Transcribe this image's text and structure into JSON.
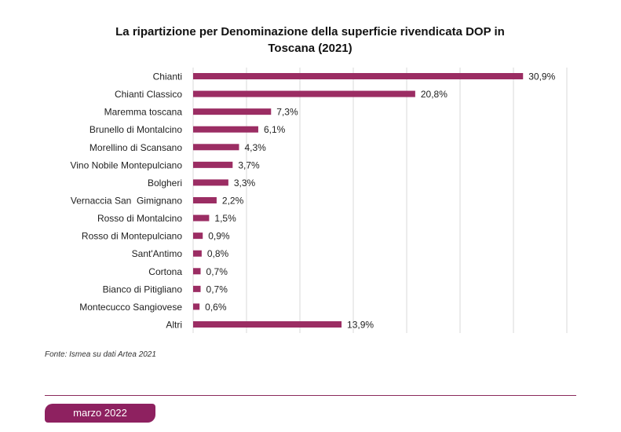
{
  "chart_data": {
    "type": "bar",
    "orientation": "horizontal",
    "title": "La ripartizione per Denominazione della superficie rivendicata DOP in Toscana (2021)",
    "title_lines": [
      "La ripartizione per Denominazione della superficie rivendicata DOP in",
      "Toscana (2021)"
    ],
    "categories": [
      "Chianti",
      "Chianti Classico",
      "Maremma toscana",
      "Brunello di Montalcino",
      "Morellino di Scansano",
      "Vino Nobile Montepulciano",
      "Bolgheri",
      "Vernaccia San  Gimignano",
      "Rosso di Montalcino",
      "Rosso di Montepulciano",
      "Sant'Antimo",
      "Cortona",
      "Bianco di Pitigliano",
      "Montecucco Sangiovese",
      "Altri"
    ],
    "values": [
      30.9,
      20.8,
      7.3,
      6.1,
      4.3,
      3.7,
      3.3,
      2.2,
      1.5,
      0.9,
      0.8,
      0.7,
      0.7,
      0.6,
      13.9
    ],
    "data_labels": [
      "30,9%",
      "20,8%",
      "7,3%",
      "6,1%",
      "4,3%",
      "3,7%",
      "3,3%",
      "2,2%",
      "1,5%",
      "0,9%",
      "0,8%",
      "0,7%",
      "0,7%",
      "0,6%",
      "13,9%"
    ],
    "xlim": [
      0,
      35
    ],
    "grid": true,
    "xlabel": "",
    "ylabel": "",
    "bar_color": "#9b2d63"
  },
  "source": "Fonte: Ismea su dati Artea 2021",
  "footer": {
    "date": "marzo 2022",
    "accent": "#8e2160"
  }
}
